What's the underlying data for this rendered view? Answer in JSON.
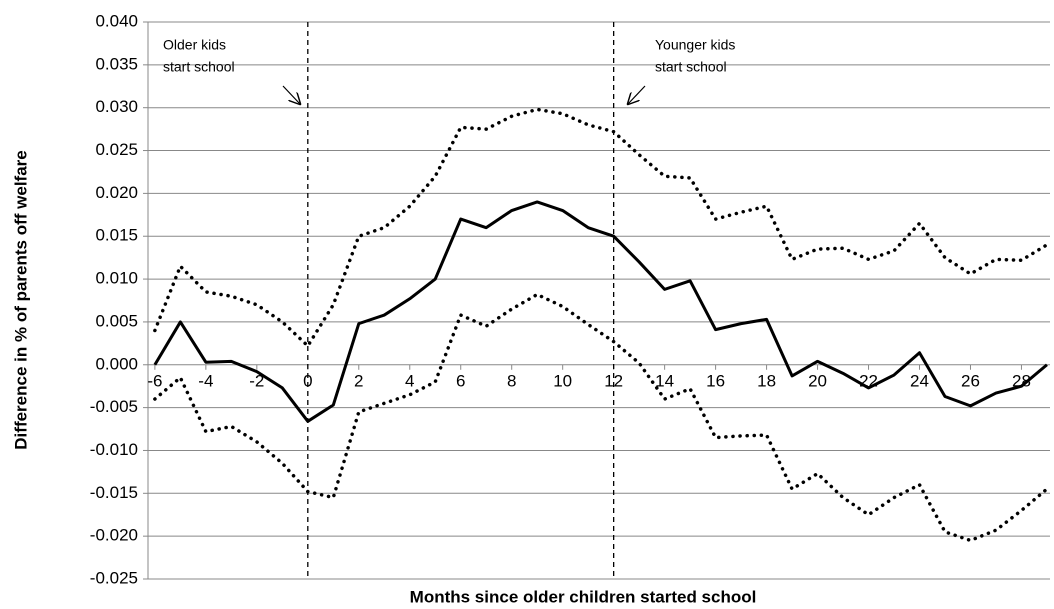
{
  "chart_data": {
    "type": "line",
    "xlabel": "Months since older children started school",
    "ylabel": "Difference in % of parents off welfare",
    "annotations": [
      [
        "Older kids",
        "start school"
      ],
      [
        "Younger kids",
        "start school"
      ]
    ],
    "vlines": [
      0,
      12
    ],
    "x": [
      -6,
      -5,
      -4,
      -3,
      -2,
      -1,
      0,
      1,
      2,
      3,
      4,
      5,
      6,
      7,
      8,
      9,
      10,
      11,
      12,
      13,
      14,
      15,
      16,
      17,
      18,
      19,
      20,
      21,
      22,
      23,
      24,
      25,
      26,
      27,
      28,
      29
    ],
    "series": [
      {
        "color": "#000000",
        "style": "solid",
        "values": [
          0,
          0.005,
          0.0003,
          0.0004,
          -0.0008,
          -0.0027,
          -0.0066,
          -0.0047,
          0.0048,
          0.0058,
          0.0077,
          0.01,
          0.017,
          0.016,
          0.018,
          0.019,
          0.018,
          0.016,
          0.015,
          0.012,
          0.0088,
          0.0098,
          0.0041,
          0.0048,
          0.0053,
          -0.0013,
          0.0004,
          -0.001,
          -0.0027,
          -0.0012,
          0.0014,
          -0.0037,
          -0.0048,
          -0.0033,
          -0.0025,
          0
        ]
      },
      {
        "color": "#000000",
        "style": "dotted",
        "values": [
          0.004,
          0.0115,
          0.0085,
          0.008,
          0.007,
          0.005,
          0.0022,
          0.007,
          0.015,
          0.016,
          0.0185,
          0.022,
          0.0277,
          0.0275,
          0.029,
          0.0298,
          0.0293,
          0.028,
          0.0272,
          0.0245,
          0.022,
          0.0218,
          0.017,
          0.0178,
          0.0185,
          0.0123,
          0.0135,
          0.0136,
          0.0123,
          0.0133,
          0.0165,
          0.0125,
          0.0106,
          0.0123,
          0.0122,
          0.014
        ]
      },
      {
        "color": "#000000",
        "style": "dotted",
        "values": [
          -0.004,
          -0.0015,
          -0.0078,
          -0.0072,
          -0.009,
          -0.0115,
          -0.0148,
          -0.0155,
          -0.0055,
          -0.0045,
          -0.0035,
          -0.002,
          0.0058,
          0.0045,
          0.0065,
          0.0082,
          0.0068,
          0.0047,
          0.0027,
          0.0002,
          -0.004,
          -0.0028,
          -0.0085,
          -0.0083,
          -0.0082,
          -0.0145,
          -0.0127,
          -0.0155,
          -0.0175,
          -0.0155,
          -0.014,
          -0.0195,
          -0.0205,
          -0.0193,
          -0.017,
          -0.0145
        ]
      }
    ],
    "xlim": [
      -6.27,
      29.12
    ],
    "xticks": [
      -6,
      -4,
      -2,
      0,
      2,
      4,
      6,
      8,
      10,
      12,
      14,
      16,
      18,
      20,
      22,
      24,
      26,
      28
    ],
    "ylim": [
      -0.025,
      0.04
    ],
    "yticks": [
      {
        "value": -0.025,
        "label": "-0.025"
      },
      {
        "value": -0.02,
        "label": "-0.020"
      },
      {
        "value": -0.015,
        "label": "-0.015"
      },
      {
        "value": -0.01,
        "label": "-0.010"
      },
      {
        "value": -0.005,
        "label": "-0.005"
      },
      {
        "value": 0,
        "label": "0.000"
      },
      {
        "value": 0.005,
        "label": "0.005"
      },
      {
        "value": 0.01,
        "label": "0.010"
      },
      {
        "value": 0.015,
        "label": "0.015"
      },
      {
        "value": 0.02,
        "label": "0.020"
      },
      {
        "value": 0.025,
        "label": "0.025"
      },
      {
        "value": 0.03,
        "label": "0.030"
      },
      {
        "value": 0.035,
        "label": "0.035"
      },
      {
        "value": 0.04,
        "label": "0.040"
      }
    ],
    "grid": true
  }
}
